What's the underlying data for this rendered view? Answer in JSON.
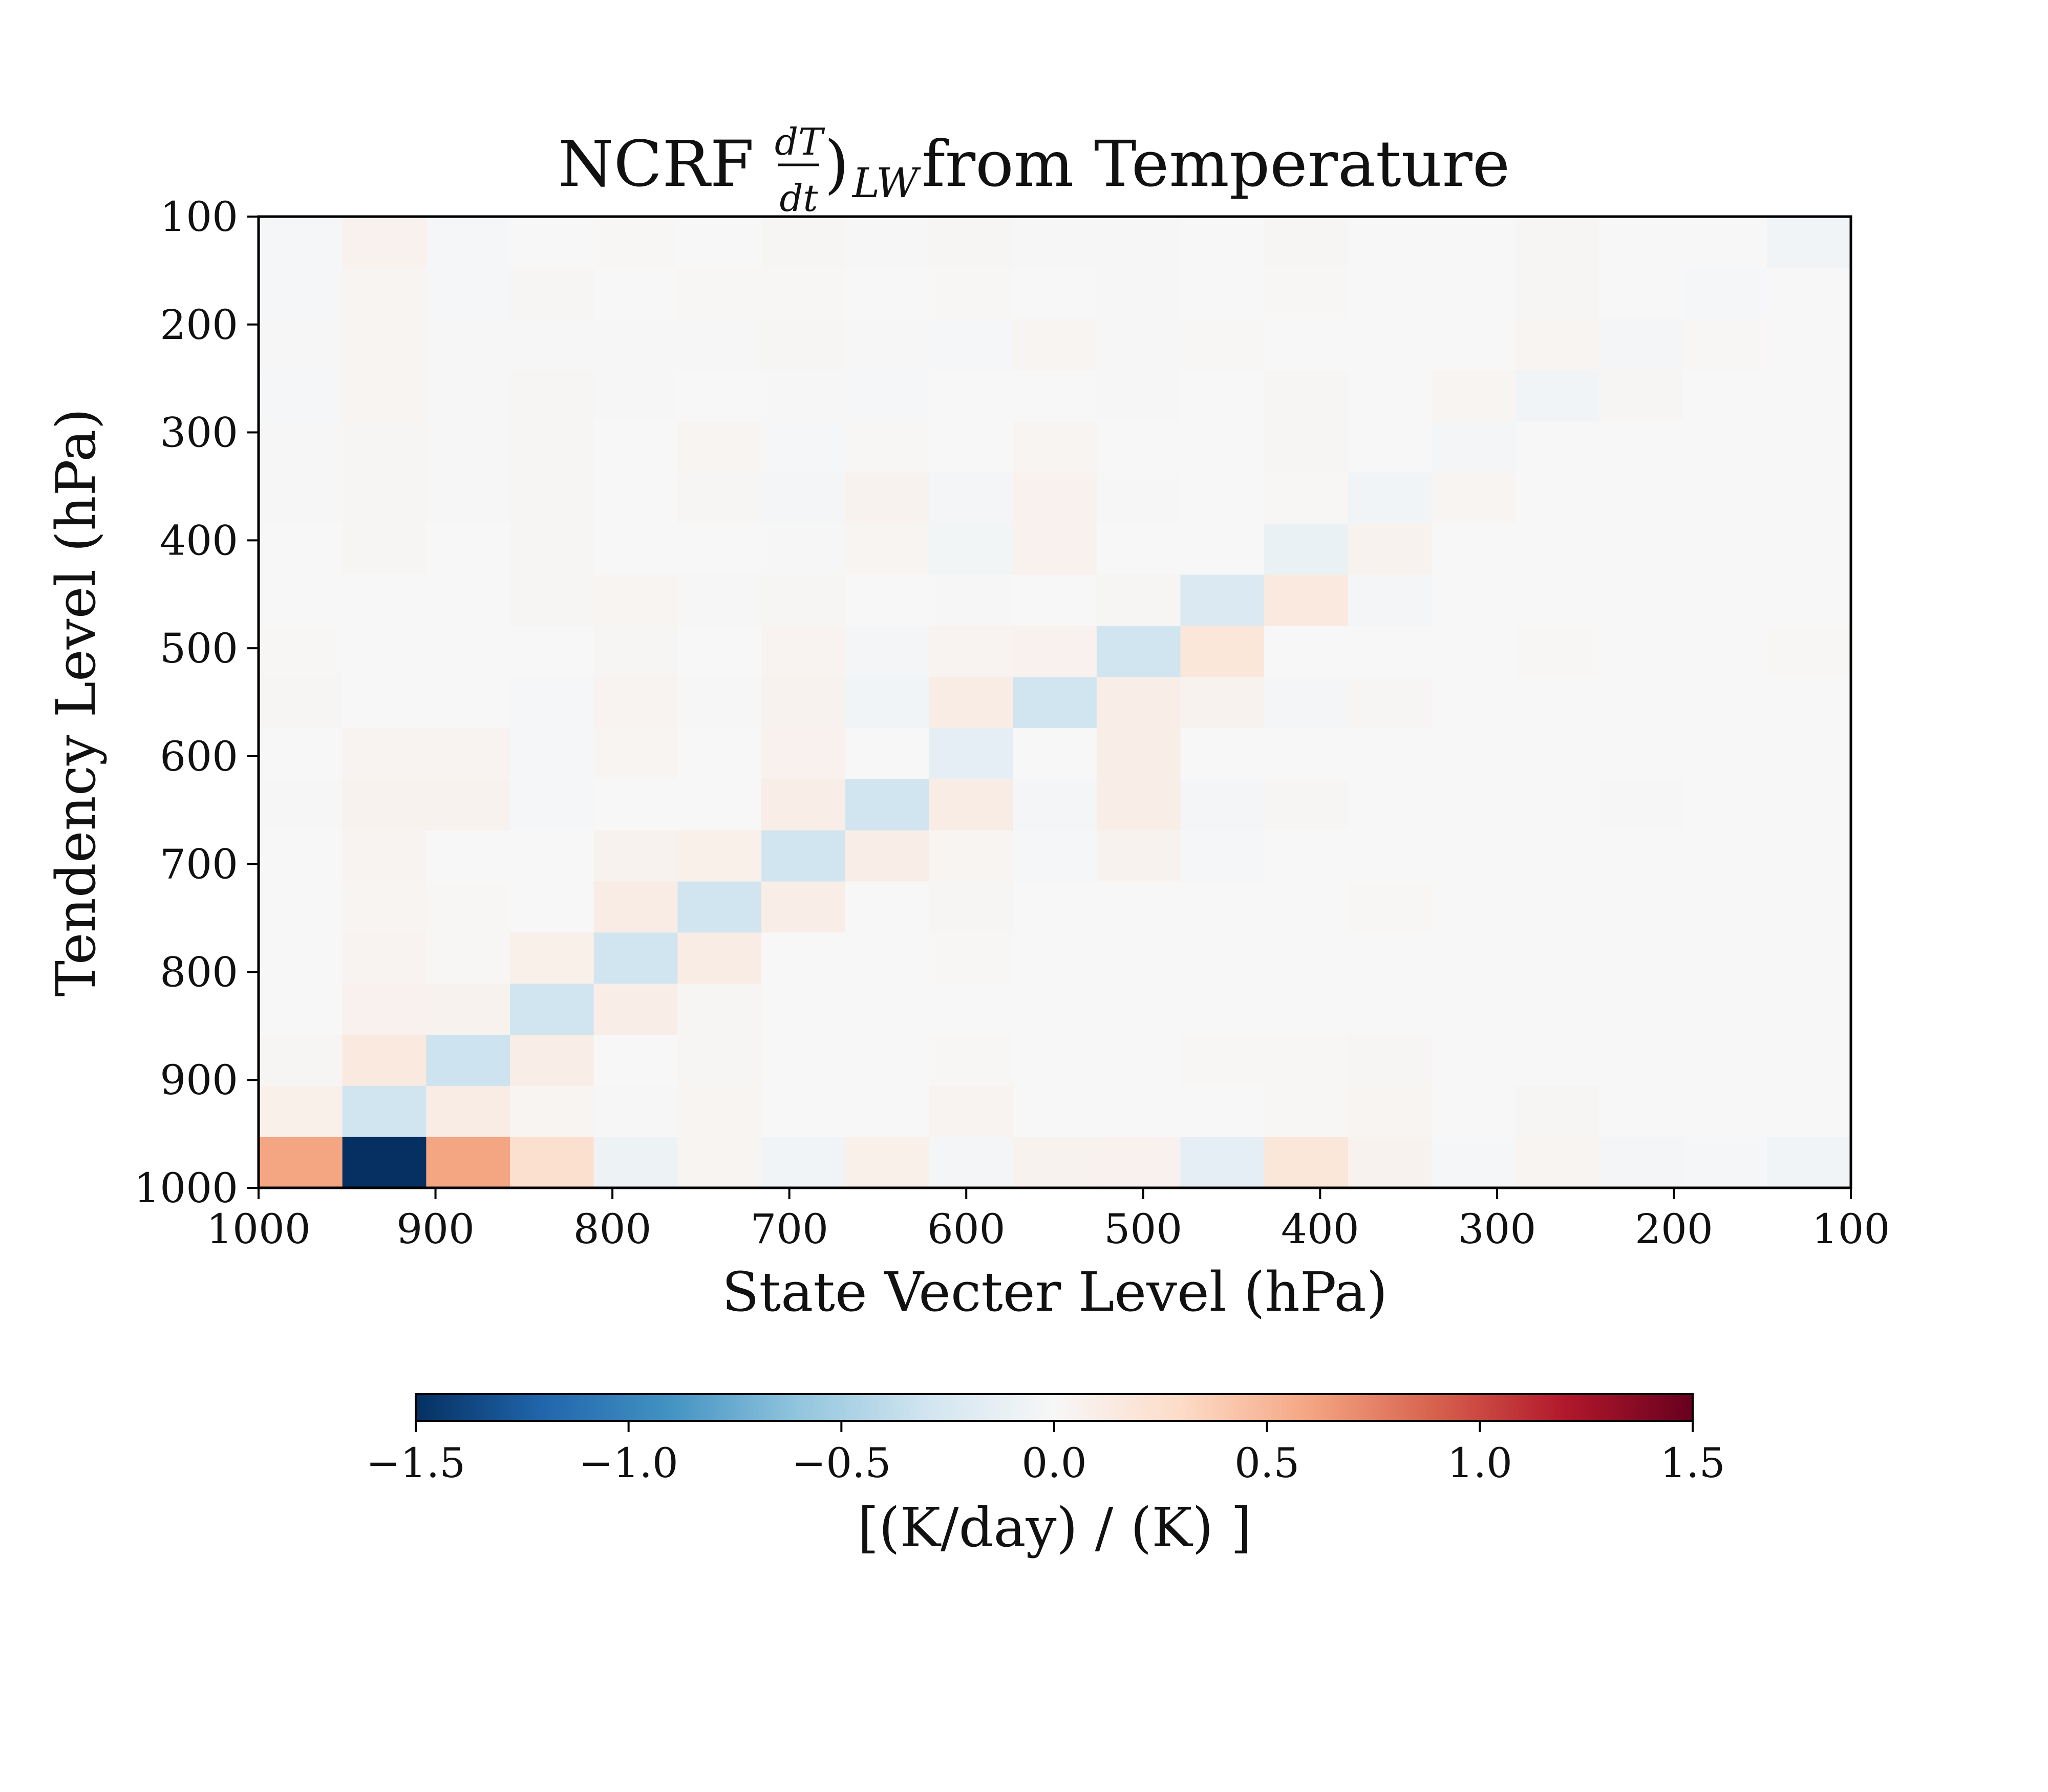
{
  "chart_data": {
    "type": "heatmap",
    "title": {
      "prefix": "NCRF ",
      "frac_num": "dT",
      "frac_den": "dt",
      "paren": ")",
      "subscript": "LW",
      "suffix": " from Temperature"
    },
    "xlabel": "State Vecter Level (hPa)",
    "ylabel": "Tendency Level (hPa)",
    "x_range": [
      1000,
      100
    ],
    "y_range": [
      1000,
      100
    ],
    "x_ticks": [
      "1000",
      "900",
      "800",
      "700",
      "600",
      "500",
      "400",
      "300",
      "200",
      "100"
    ],
    "y_ticks": [
      "100",
      "200",
      "300",
      "400",
      "500",
      "600",
      "700",
      "800",
      "900",
      "1000"
    ],
    "x_levels": [
      1000,
      950,
      900,
      850,
      800,
      750,
      700,
      650,
      600,
      550,
      500,
      450,
      400,
      350,
      300,
      250,
      200,
      150,
      100
    ],
    "y_levels": [
      1000,
      950,
      900,
      850,
      800,
      750,
      700,
      650,
      600,
      550,
      500,
      450,
      400,
      350,
      300,
      250,
      200,
      150,
      100
    ],
    "values": [
      [
        0.6,
        -1.5,
        0.6,
        0.25,
        -0.08,
        0.03,
        -0.05,
        0.08,
        -0.03,
        0.05,
        0.06,
        -0.15,
        0.18,
        0.05,
        -0.02,
        0.03,
        -0.03,
        -0.02,
        -0.05
      ],
      [
        0.08,
        -0.3,
        0.12,
        0.03,
        -0.01,
        0.03,
        0.0,
        0.0,
        0.04,
        0.0,
        0.0,
        0.0,
        0.01,
        0.03,
        0.0,
        0.02,
        0.0,
        0.0,
        0.0
      ],
      [
        0.02,
        0.15,
        -0.32,
        0.1,
        0.0,
        0.02,
        0.0,
        0.0,
        0.01,
        0.0,
        0.0,
        0.01,
        0.01,
        0.02,
        0.0,
        0.0,
        0.0,
        0.0,
        0.0
      ],
      [
        0.0,
        0.06,
        0.05,
        -0.3,
        0.1,
        0.02,
        0.0,
        0.0,
        0.0,
        0.0,
        0.0,
        0.0,
        0.0,
        0.0,
        0.0,
        0.0,
        0.0,
        0.0,
        0.0
      ],
      [
        0.0,
        0.04,
        0.01,
        0.08,
        -0.3,
        0.12,
        0.0,
        0.0,
        0.01,
        0.0,
        0.0,
        0.0,
        0.0,
        0.0,
        0.0,
        0.0,
        0.0,
        0.0,
        0.0
      ],
      [
        0.0,
        0.03,
        0.01,
        0.0,
        0.12,
        -0.3,
        0.1,
        0.0,
        0.02,
        0.0,
        0.0,
        0.0,
        0.0,
        0.01,
        0.0,
        0.0,
        0.0,
        0.0,
        0.0
      ],
      [
        0.0,
        0.04,
        0.0,
        0.0,
        0.05,
        0.08,
        -0.3,
        0.1,
        0.03,
        -0.02,
        0.05,
        -0.02,
        0.0,
        0.0,
        0.0,
        0.0,
        0.0,
        0.0,
        0.0
      ],
      [
        -0.01,
        0.05,
        0.05,
        -0.02,
        0.0,
        0.0,
        0.1,
        -0.3,
        0.12,
        -0.03,
        0.1,
        -0.03,
        0.02,
        0.0,
        0.0,
        0.0,
        -0.01,
        0.0,
        0.0
      ],
      [
        0.0,
        0.04,
        0.04,
        -0.02,
        0.03,
        0.0,
        0.06,
        0.0,
        -0.15,
        0.0,
        0.1,
        0.0,
        0.0,
        0.0,
        0.0,
        0.0,
        0.0,
        0.0,
        0.0
      ],
      [
        0.02,
        0.0,
        0.0,
        -0.02,
        0.04,
        -0.01,
        0.05,
        -0.05,
        0.12,
        -0.3,
        0.1,
        0.05,
        -0.03,
        0.02,
        0.0,
        0.0,
        0.0,
        0.0,
        0.0
      ],
      [
        0.01,
        0.0,
        0.0,
        0.0,
        0.02,
        0.0,
        0.04,
        -0.03,
        0.04,
        0.06,
        -0.3,
        0.18,
        0.0,
        0.0,
        0.0,
        0.01,
        0.0,
        0.0,
        0.01
      ],
      [
        0.0,
        0.0,
        0.0,
        0.02,
        0.03,
        -0.01,
        0.02,
        0.0,
        -0.01,
        0.0,
        0.02,
        -0.22,
        0.15,
        -0.03,
        0.0,
        0.0,
        0.0,
        0.0,
        0.0
      ],
      [
        0.0,
        0.02,
        0.0,
        0.02,
        0.0,
        0.0,
        -0.01,
        0.03,
        -0.04,
        0.06,
        0.0,
        0.0,
        -0.1,
        0.05,
        0.0,
        0.0,
        0.0,
        0.0,
        0.0
      ],
      [
        -0.01,
        0.02,
        -0.01,
        0.02,
        0.0,
        0.02,
        -0.03,
        0.05,
        -0.03,
        0.06,
        -0.01,
        0.0,
        0.01,
        -0.05,
        0.03,
        0.0,
        0.0,
        0.0,
        0.0
      ],
      [
        -0.01,
        0.02,
        -0.01,
        0.02,
        0.0,
        0.03,
        -0.02,
        0.01,
        0.0,
        0.03,
        0.0,
        0.0,
        0.02,
        0.0,
        -0.03,
        0.0,
        0.0,
        0.0,
        0.0
      ],
      [
        -0.02,
        0.03,
        -0.01,
        0.02,
        -0.01,
        0.0,
        -0.01,
        -0.02,
        0.0,
        0.0,
        -0.01,
        0.0,
        0.02,
        0.0,
        0.03,
        -0.05,
        0.02,
        0.0,
        0.0
      ],
      [
        -0.01,
        0.03,
        -0.01,
        -0.01,
        -0.01,
        -0.01,
        0.02,
        -0.01,
        -0.02,
        0.03,
        -0.01,
        0.01,
        0.0,
        0.0,
        0.0,
        0.03,
        -0.03,
        0.01,
        0.0
      ],
      [
        -0.02,
        0.03,
        -0.02,
        0.02,
        0.0,
        0.01,
        0.01,
        0.0,
        0.01,
        0.0,
        -0.01,
        0.0,
        0.01,
        0.0,
        0.0,
        0.02,
        0.0,
        -0.02,
        0.0
      ],
      [
        -0.02,
        0.06,
        -0.02,
        0.0,
        0.01,
        0.0,
        0.02,
        -0.01,
        0.02,
        -0.01,
        -0.01,
        0.0,
        0.02,
        0.0,
        0.0,
        0.02,
        0.0,
        0.0,
        -0.05
      ]
    ],
    "colormap": "RdBu_r",
    "vmin": -1.5,
    "vmax": 1.5,
    "colorbar": {
      "orientation": "horizontal",
      "ticks": [
        "−1.5",
        "−1.0",
        "−0.5",
        "0.0",
        "0.5",
        "1.0",
        "1.5"
      ],
      "tick_values": [
        -1.5,
        -1.0,
        -0.5,
        0.0,
        0.5,
        1.0,
        1.5
      ],
      "label": "[(K/day) / (K) ]"
    },
    "grid": false
  }
}
